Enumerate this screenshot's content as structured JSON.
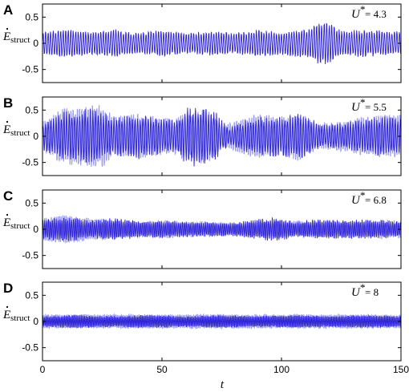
{
  "chart_data": {
    "type": "line",
    "x_range": [
      0,
      150
    ],
    "x_ticks": [
      0,
      50,
      100,
      150
    ],
    "x_tick_labels": [
      "0",
      "50",
      "100",
      "150"
    ],
    "xlabel": "t",
    "colors": {
      "dark": "#2b1fd6",
      "light": "#9a9af0"
    },
    "panels": [
      {
        "letter": "A",
        "ylabel": "E",
        "ylabel_sub": "struct",
        "ylim": [
          -0.75,
          0.75
        ],
        "y_ticks": [
          -0.5,
          0,
          0.5
        ],
        "y_tick_labels": [
          "-0.5",
          "0",
          "0.5"
        ],
        "annotation_u": "U",
        "annotation_star": "*",
        "annotation_value": "= 4.3",
        "series": [
          {
            "name": "",
            "style": "dark",
            "carrier_period": 1.05,
            "amplitude_envelope": [
              [
                0,
                0.22
              ],
              [
                10,
                0.3
              ],
              [
                20,
                0.22
              ],
              [
                30,
                0.28
              ],
              [
                40,
                0.2
              ],
              [
                50,
                0.27
              ],
              [
                60,
                0.2
              ],
              [
                70,
                0.25
              ],
              [
                80,
                0.2
              ],
              [
                90,
                0.27
              ],
              [
                100,
                0.22
              ],
              [
                110,
                0.28
              ],
              [
                118,
                0.45
              ],
              [
                125,
                0.25
              ],
              [
                135,
                0.27
              ],
              [
                150,
                0.22
              ]
            ]
          }
        ]
      },
      {
        "letter": "B",
        "ylabel": "E",
        "ylabel_sub": "struct",
        "ylim": [
          -0.75,
          0.75
        ],
        "y_ticks": [
          -0.5,
          0,
          0.5
        ],
        "y_tick_labels": [
          "-0.5",
          "0",
          "0.5"
        ],
        "annotation_u": "U",
        "annotation_star": "*",
        "annotation_value": "= 5.5",
        "series": [
          {
            "name": "",
            "style": "light",
            "carrier_period": 0.9,
            "amplitude_envelope": [
              [
                0,
                0.3
              ],
              [
                8,
                0.55
              ],
              [
                15,
                0.6
              ],
              [
                25,
                0.65
              ],
              [
                30,
                0.4
              ],
              [
                40,
                0.45
              ],
              [
                55,
                0.35
              ],
              [
                60,
                0.5
              ],
              [
                70,
                0.55
              ],
              [
                75,
                0.2
              ],
              [
                80,
                0.3
              ],
              [
                90,
                0.45
              ],
              [
                100,
                0.4
              ],
              [
                107,
                0.5
              ],
              [
                115,
                0.25
              ],
              [
                125,
                0.3
              ],
              [
                135,
                0.4
              ],
              [
                150,
                0.45
              ]
            ]
          },
          {
            "name": "",
            "style": "dark",
            "carrier_period": 1.1,
            "amplitude_envelope": [
              [
                0,
                0.25
              ],
              [
                10,
                0.45
              ],
              [
                20,
                0.5
              ],
              [
                30,
                0.35
              ],
              [
                40,
                0.4
              ],
              [
                55,
                0.3
              ],
              [
                62,
                0.55
              ],
              [
                72,
                0.45
              ],
              [
                78,
                0.15
              ],
              [
                88,
                0.35
              ],
              [
                100,
                0.35
              ],
              [
                108,
                0.4
              ],
              [
                118,
                0.2
              ],
              [
                128,
                0.25
              ],
              [
                140,
                0.35
              ],
              [
                150,
                0.35
              ]
            ]
          }
        ]
      },
      {
        "letter": "C",
        "ylabel": "E",
        "ylabel_sub": "struct",
        "ylim": [
          -0.75,
          0.75
        ],
        "y_ticks": [
          -0.5,
          0,
          0.5
        ],
        "y_tick_labels": [
          "-0.5",
          "0",
          "0.5"
        ],
        "annotation_u": "U",
        "annotation_star": "*",
        "annotation_value": "= 6.8",
        "series": [
          {
            "name": "",
            "style": "light",
            "carrier_period": 0.7,
            "amplitude_envelope": [
              [
                0,
                0.22
              ],
              [
                10,
                0.28
              ],
              [
                20,
                0.22
              ],
              [
                30,
                0.2
              ],
              [
                40,
                0.15
              ],
              [
                50,
                0.18
              ],
              [
                60,
                0.15
              ],
              [
                70,
                0.15
              ],
              [
                80,
                0.12
              ],
              [
                90,
                0.16
              ],
              [
                100,
                0.18
              ],
              [
                110,
                0.14
              ],
              [
                120,
                0.18
              ],
              [
                130,
                0.16
              ],
              [
                140,
                0.18
              ],
              [
                150,
                0.16
              ]
            ]
          },
          {
            "name": "",
            "style": "dark",
            "carrier_period": 0.8,
            "amplitude_envelope": [
              [
                0,
                0.18
              ],
              [
                10,
                0.22
              ],
              [
                20,
                0.16
              ],
              [
                30,
                0.2
              ],
              [
                40,
                0.15
              ],
              [
                50,
                0.16
              ],
              [
                60,
                0.14
              ],
              [
                70,
                0.13
              ],
              [
                80,
                0.12
              ],
              [
                90,
                0.18
              ],
              [
                98,
                0.22
              ],
              [
                105,
                0.14
              ],
              [
                115,
                0.18
              ],
              [
                125,
                0.16
              ],
              [
                135,
                0.18
              ],
              [
                150,
                0.14
              ]
            ]
          }
        ]
      },
      {
        "letter": "D",
        "ylabel": "E",
        "ylabel_sub": "struct",
        "ylim": [
          -0.75,
          0.75
        ],
        "y_ticks": [
          -0.5,
          0,
          0.5
        ],
        "y_tick_labels": [
          "-0.5",
          "0",
          "0.5"
        ],
        "annotation_u": "U",
        "annotation_star": "*",
        "annotation_value": "= 8",
        "series": [
          {
            "name": "",
            "style": "light",
            "carrier_period": 0.6,
            "amplitude_envelope": [
              [
                0,
                0.14
              ],
              [
                20,
                0.14
              ],
              [
                40,
                0.14
              ],
              [
                60,
                0.14
              ],
              [
                80,
                0.14
              ],
              [
                100,
                0.14
              ],
              [
                120,
                0.14
              ],
              [
                150,
                0.14
              ]
            ]
          },
          {
            "name": "",
            "style": "dark",
            "carrier_period": 0.65,
            "amplitude_envelope": [
              [
                0,
                0.1
              ],
              [
                15,
                0.12
              ],
              [
                30,
                0.1
              ],
              [
                45,
                0.12
              ],
              [
                60,
                0.1
              ],
              [
                75,
                0.12
              ],
              [
                90,
                0.1
              ],
              [
                105,
                0.12
              ],
              [
                120,
                0.1
              ],
              [
                135,
                0.12
              ],
              [
                150,
                0.1
              ]
            ]
          }
        ]
      }
    ]
  }
}
